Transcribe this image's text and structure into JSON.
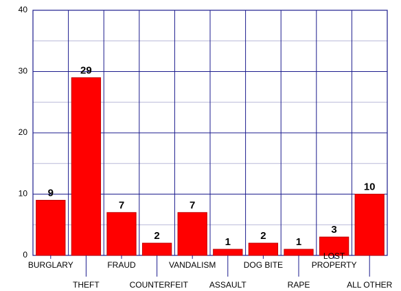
{
  "chart_data": {
    "type": "bar",
    "categories": [
      "BURGLARY",
      "THEFT",
      "FRAUD",
      "COUNTERFEIT",
      "VANDALISM",
      "ASSAULT",
      "DOG BITE",
      "RAPE",
      "LOST PROPERTY",
      "ALL OTHER"
    ],
    "values": [
      9,
      29,
      7,
      2,
      7,
      1,
      2,
      1,
      3,
      10
    ],
    "color": "#ff0000",
    "ylim": [
      0,
      40
    ],
    "yticks": [
      0,
      10,
      20,
      30,
      40
    ],
    "minor_yticks": [
      5,
      15,
      25,
      35
    ],
    "grid": true
  }
}
